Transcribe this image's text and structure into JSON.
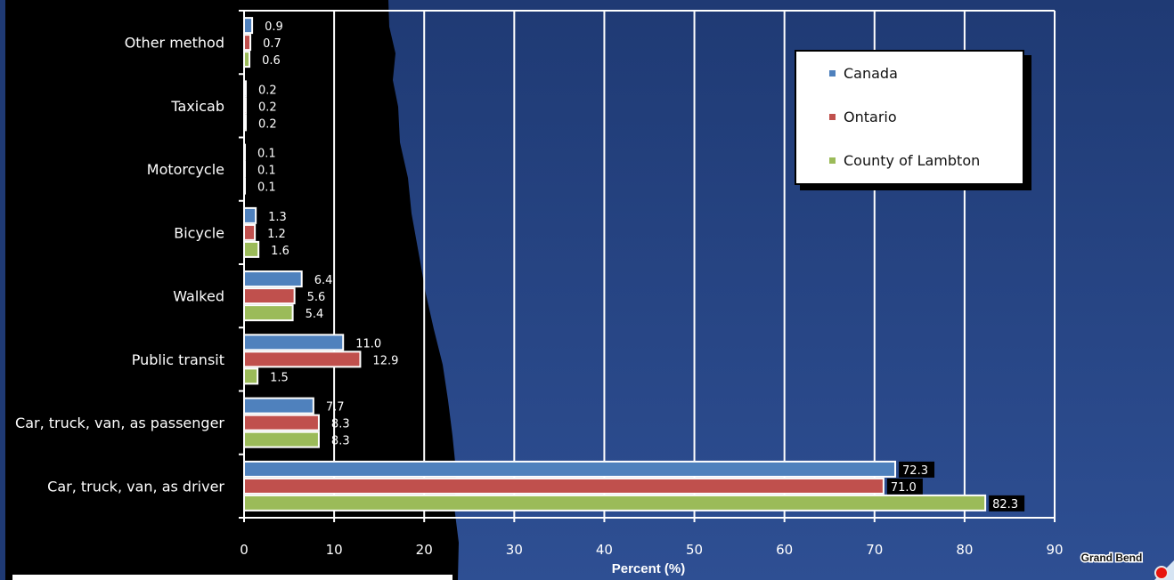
{
  "chart_data": {
    "type": "bar",
    "orientation": "horizontal",
    "title": "",
    "xlabel": "Percent (%)",
    "ylabel": "",
    "xlim": [
      0,
      90
    ],
    "x_ticks": [
      "0",
      "10",
      "20",
      "30",
      "40",
      "50",
      "60",
      "70",
      "80",
      "90"
    ],
    "grid": true,
    "legend_position": "top-right",
    "categories": [
      "Other method",
      "Taxicab",
      "Motorcycle",
      "Bicycle",
      "Walked",
      "Public transit",
      "Car, truck, van, as passenger",
      "Car, truck, van, as driver"
    ],
    "series": [
      {
        "name": "Canada",
        "color": "#4f81bd",
        "values": [
          0.9,
          0.2,
          0.1,
          1.3,
          6.4,
          11.0,
          7.7,
          72.3
        ],
        "labels": [
          "0.9",
          "0.2",
          "0.1",
          "1.3",
          "6.4",
          "11.0",
          "7.7",
          "72.3"
        ]
      },
      {
        "name": "Ontario",
        "color": "#c0504d",
        "values": [
          0.7,
          0.2,
          0.1,
          1.2,
          5.6,
          12.9,
          8.3,
          71.0
        ],
        "labels": [
          "0.7",
          "0.2",
          "0.1",
          "1.2",
          "5.6",
          "12.9",
          "8.3",
          "71.0"
        ]
      },
      {
        "name": "County of Lambton",
        "color": "#9bbb59",
        "values": [
          0.6,
          0.2,
          0.1,
          1.6,
          5.4,
          1.5,
          8.3,
          82.3
        ],
        "labels": [
          "0.6",
          "0.2",
          "0.1",
          "1.6",
          "5.4",
          "1.5",
          "8.3",
          "82.3"
        ]
      }
    ]
  },
  "logo": {
    "text": "Grand Bend",
    "icon": "sun-icon"
  }
}
